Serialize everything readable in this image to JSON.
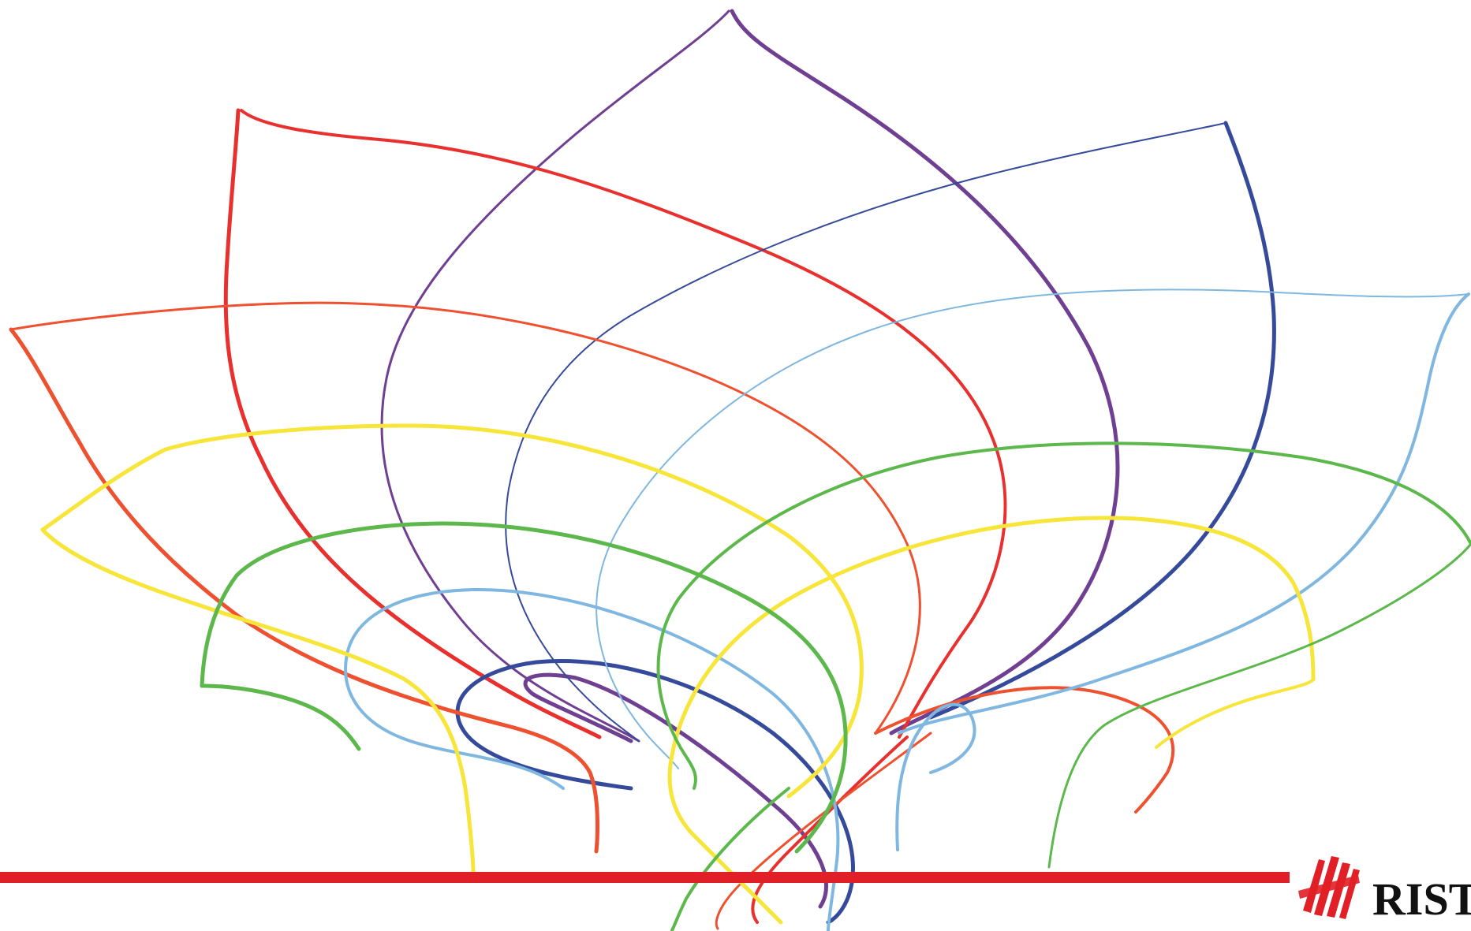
{
  "slide": {
    "brand": {
      "logo_text": "RISTO",
      "logo_color": "#111111",
      "mark_color": "#e11f26"
    },
    "base_line": {
      "color": "#e11f26"
    },
    "palette": {
      "purple": "#6f3f92",
      "red": "#e8312e",
      "navy": "#354a9a",
      "orange_red": "#ee5130",
      "sky_blue": "#7fb7e0",
      "yellow": "#f7e53a",
      "green": "#5db84c"
    },
    "decoration": {
      "name": "lotus-line-art",
      "petals": [
        {
          "name": "purple-petal",
          "color_key": "purple"
        },
        {
          "name": "red-petal",
          "color_key": "red"
        },
        {
          "name": "navy-petal",
          "color_key": "navy"
        },
        {
          "name": "orange-petal",
          "color_key": "orange_red"
        },
        {
          "name": "sky-petal",
          "color_key": "sky_blue"
        },
        {
          "name": "yellow-petal",
          "color_key": "yellow"
        },
        {
          "name": "green-petal",
          "color_key": "green"
        }
      ]
    }
  }
}
